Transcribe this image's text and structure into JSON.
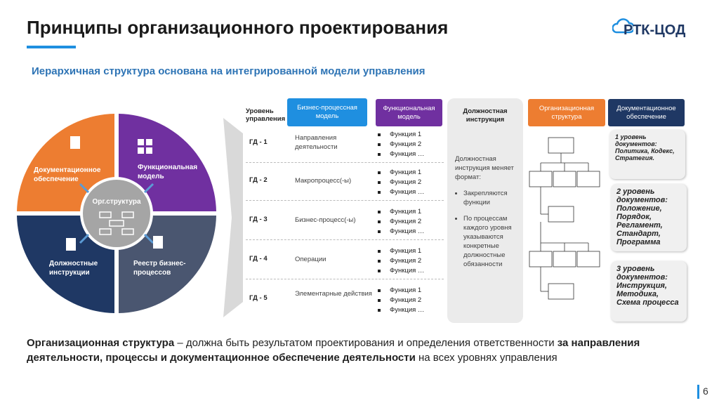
{
  "header": {
    "title": "Принципы организационного проектирования",
    "subtitle": "Иерархичная структура основана на интегрированной модели управления",
    "logo": "РТК-ЦОД"
  },
  "circle": {
    "center": "Орг.структура",
    "segments": [
      "Документационное обеспечение",
      "Функциональная модель",
      "Должностные инструкции",
      "Реестр бизнес-процессов"
    ]
  },
  "table": {
    "level_header": "Уровень управления",
    "columns": [
      "Бизнес-процессная модель",
      "Функциональная модель",
      "Должностная инструкция",
      "Организационная структура",
      "Документационное обеспечение"
    ],
    "rows": [
      {
        "level": "ГД - 1",
        "process": "Направления деятельности",
        "functions": [
          "Функция 1",
          "Функция 2",
          "Функция …"
        ]
      },
      {
        "level": "ГД - 2",
        "process": "Макропроцесс(-ы)",
        "functions": [
          "Функция 1",
          "Функция 2",
          "Функция …"
        ]
      },
      {
        "level": "ГД - 3",
        "process": "Бизнес-процесс(-ы)",
        "functions": [
          "Функция 1",
          "Функция 2",
          "Функция …"
        ]
      },
      {
        "level": "ГД - 4",
        "process": "Операции",
        "functions": [
          "Функция 1",
          "Функция 2",
          "Функция …"
        ]
      },
      {
        "level": "ГД - 5",
        "process": "Элементарные действия",
        "functions": [
          "Функция 1",
          "Функция 2",
          "Функция …"
        ]
      }
    ]
  },
  "job_instruction": {
    "intro": "Должностная инструкция меняет формат:",
    "items": [
      "Закрепляются функции",
      "По процессам каждого уровня указываются конкретные должностные обязанности"
    ]
  },
  "documents": [
    {
      "title": "1 уровень документов:",
      "text": "Политика, Кодекс, Стратегия."
    },
    {
      "title": "2 уровень документов:",
      "text": "Положение, Порядок, Регламент, Стандарт, Программа"
    },
    {
      "title": "3 уровень документов:",
      "text": "Инструкция, Методика, Схема процесса"
    }
  ],
  "footer": {
    "parts": [
      "Организационная структура",
      " – должна быть результатом проектирования и определения ответственности ",
      "за направления деятельности, процессы и документационное обеспечение деятельности",
      " на всех уровнях управления"
    ]
  },
  "page_number": "6"
}
